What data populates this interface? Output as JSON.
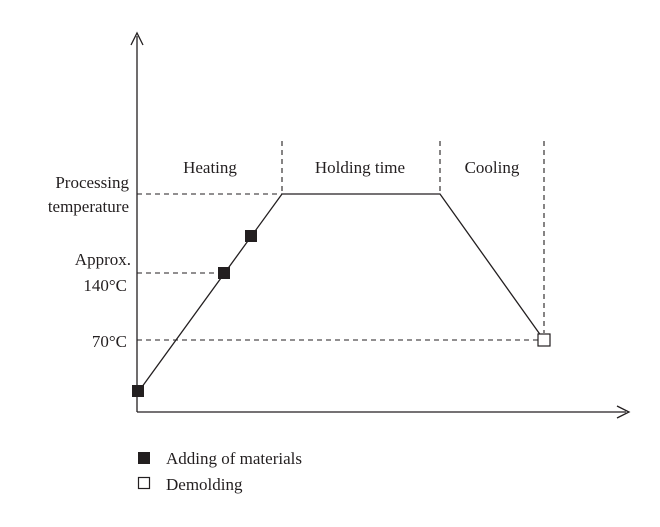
{
  "phases": {
    "heating": "Heating",
    "holding": "Holding time",
    "cooling": "Cooling"
  },
  "y_labels": {
    "processing_line1": "Processing",
    "processing_line2": "temperature",
    "approx_line1": "Approx.",
    "approx_line2": "140°C",
    "seventy": "70°C"
  },
  "legend": {
    "adding": "Adding of materials",
    "demolding": "Demolding"
  },
  "colors": {
    "ink": "#231f20",
    "marker_fill": "#231f20",
    "marker_open": "#ffffff"
  }
}
